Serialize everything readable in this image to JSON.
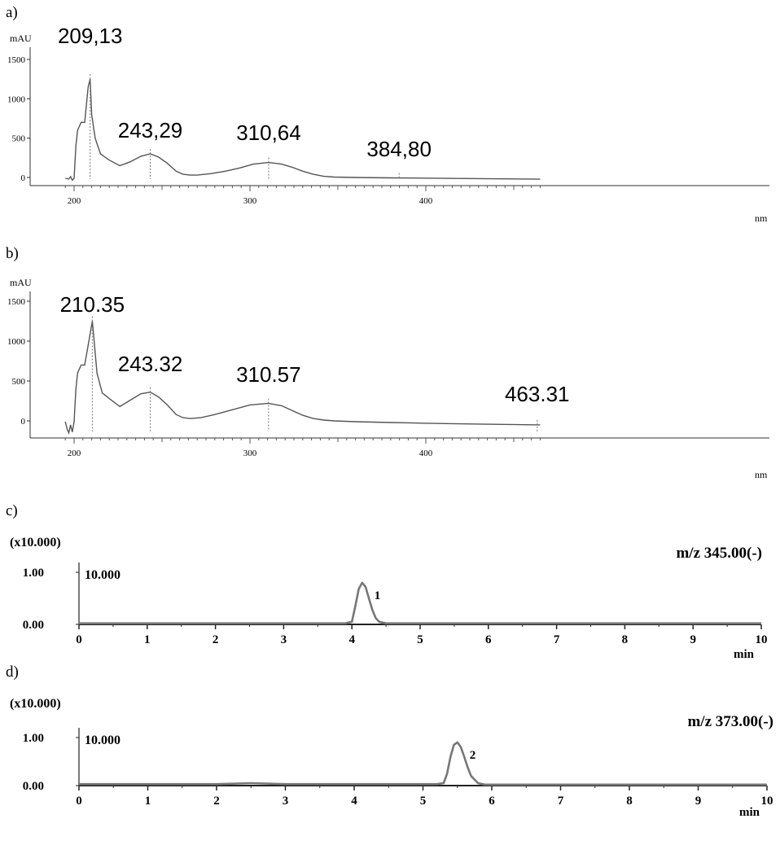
{
  "panel_labels": [
    "a)",
    "b)",
    "c)",
    "d)"
  ],
  "chart_data": [
    {
      "panel": "a)",
      "type": "line",
      "y_unit": "mAU",
      "x_unit": "nm",
      "xlim": [
        195,
        465
      ],
      "ylim": [
        -100,
        1500
      ],
      "yticks": [
        "0",
        "500",
        "1000",
        "1500"
      ],
      "xticks": [
        "200",
        "300",
        "400"
      ],
      "peak_labels": [
        "209,13",
        "243,29",
        "310,64",
        "384,80"
      ],
      "peak_x": [
        209.13,
        243.29,
        310.64,
        384.8
      ],
      "series": [
        {
          "x": [
            195,
            197,
            198,
            199,
            200,
            201,
            202,
            204,
            206,
            208,
            209.13,
            210,
            212,
            215,
            220,
            226,
            232,
            238,
            243.29,
            248,
            253,
            258,
            262,
            266,
            270,
            278,
            286,
            294,
            302,
            310.64,
            318,
            324,
            330,
            336,
            342,
            348,
            360,
            380,
            400,
            430,
            465
          ],
          "y": [
            -10,
            -20,
            10,
            -35,
            -10,
            400,
            600,
            700,
            700,
            1150,
            1250,
            800,
            500,
            300,
            220,
            150,
            200,
            270,
            300,
            260,
            180,
            80,
            40,
            30,
            30,
            50,
            80,
            120,
            170,
            190,
            170,
            130,
            80,
            40,
            15,
            5,
            0,
            -5,
            -8,
            -15,
            -22
          ]
        }
      ]
    },
    {
      "panel": "b)",
      "type": "line",
      "y_unit": "mAU",
      "x_unit": "nm",
      "xlim": [
        195,
        465
      ],
      "ylim": [
        -150,
        1500
      ],
      "yticks": [
        "0",
        "500",
        "1000",
        "1500"
      ],
      "xticks": [
        "200",
        "300",
        "400"
      ],
      "peak_labels": [
        "210.35",
        "243.32",
        "310.57",
        "463.31"
      ],
      "peak_x": [
        210.35,
        243.32,
        310.57,
        463.31
      ],
      "series": [
        {
          "x": [
            195,
            196,
            197,
            198,
            199,
            200,
            201,
            202,
            204,
            206,
            208,
            210.35,
            211,
            213,
            216,
            220,
            226,
            232,
            238,
            243.32,
            248,
            253,
            258,
            262,
            266,
            272,
            280,
            290,
            300,
            310.57,
            318,
            324,
            330,
            336,
            342,
            348,
            360,
            380,
            400,
            430,
            465
          ],
          "y": [
            -10,
            -100,
            -150,
            -50,
            -140,
            -10,
            400,
            600,
            700,
            700,
            950,
            1250,
            1100,
            600,
            350,
            280,
            180,
            260,
            340,
            360,
            300,
            200,
            80,
            40,
            30,
            40,
            80,
            140,
            200,
            220,
            190,
            130,
            70,
            30,
            10,
            0,
            -10,
            -20,
            -30,
            -40,
            -50
          ]
        }
      ]
    },
    {
      "panel": "c)",
      "type": "line",
      "x_unit": "min",
      "multiplier": "(x10.000)",
      "intensity_label": "10.000",
      "mz": "m/z 345.00(-)",
      "xlim": [
        0,
        10
      ],
      "ylim": [
        0,
        1
      ],
      "yticks": [
        "0.00",
        "1.00"
      ],
      "xticks": [
        "0",
        "1",
        "2",
        "3",
        "4",
        "5",
        "6",
        "7",
        "8",
        "9",
        "10"
      ],
      "peak_number": "1",
      "series": [
        {
          "x": [
            0,
            3.9,
            4.0,
            4.05,
            4.1,
            4.15,
            4.2,
            4.25,
            4.3,
            4.35,
            4.4,
            4.5,
            4.6,
            10
          ],
          "y": [
            0.02,
            0.02,
            0.05,
            0.35,
            0.68,
            0.8,
            0.72,
            0.5,
            0.28,
            0.12,
            0.05,
            0.02,
            0.02,
            0.02
          ]
        }
      ]
    },
    {
      "panel": "d)",
      "type": "line",
      "x_unit": "min",
      "multiplier": "(x10.000)",
      "intensity_label": "10.000",
      "mz": "m/z 373.00(-)",
      "xlim": [
        0,
        10
      ],
      "ylim": [
        0,
        1
      ],
      "yticks": [
        "0.00",
        "1.00"
      ],
      "xticks": [
        "0",
        "1",
        "2",
        "3",
        "4",
        "5",
        "6",
        "7",
        "8",
        "9",
        "10"
      ],
      "peak_number": "2",
      "series": [
        {
          "x": [
            0,
            2.0,
            2.5,
            3.0,
            5.2,
            5.3,
            5.35,
            5.4,
            5.45,
            5.5,
            5.55,
            5.6,
            5.65,
            5.7,
            5.8,
            5.9,
            10
          ],
          "y": [
            0.03,
            0.03,
            0.05,
            0.03,
            0.03,
            0.05,
            0.25,
            0.6,
            0.85,
            0.9,
            0.8,
            0.6,
            0.38,
            0.2,
            0.05,
            0.02,
            0.02
          ]
        }
      ]
    }
  ]
}
